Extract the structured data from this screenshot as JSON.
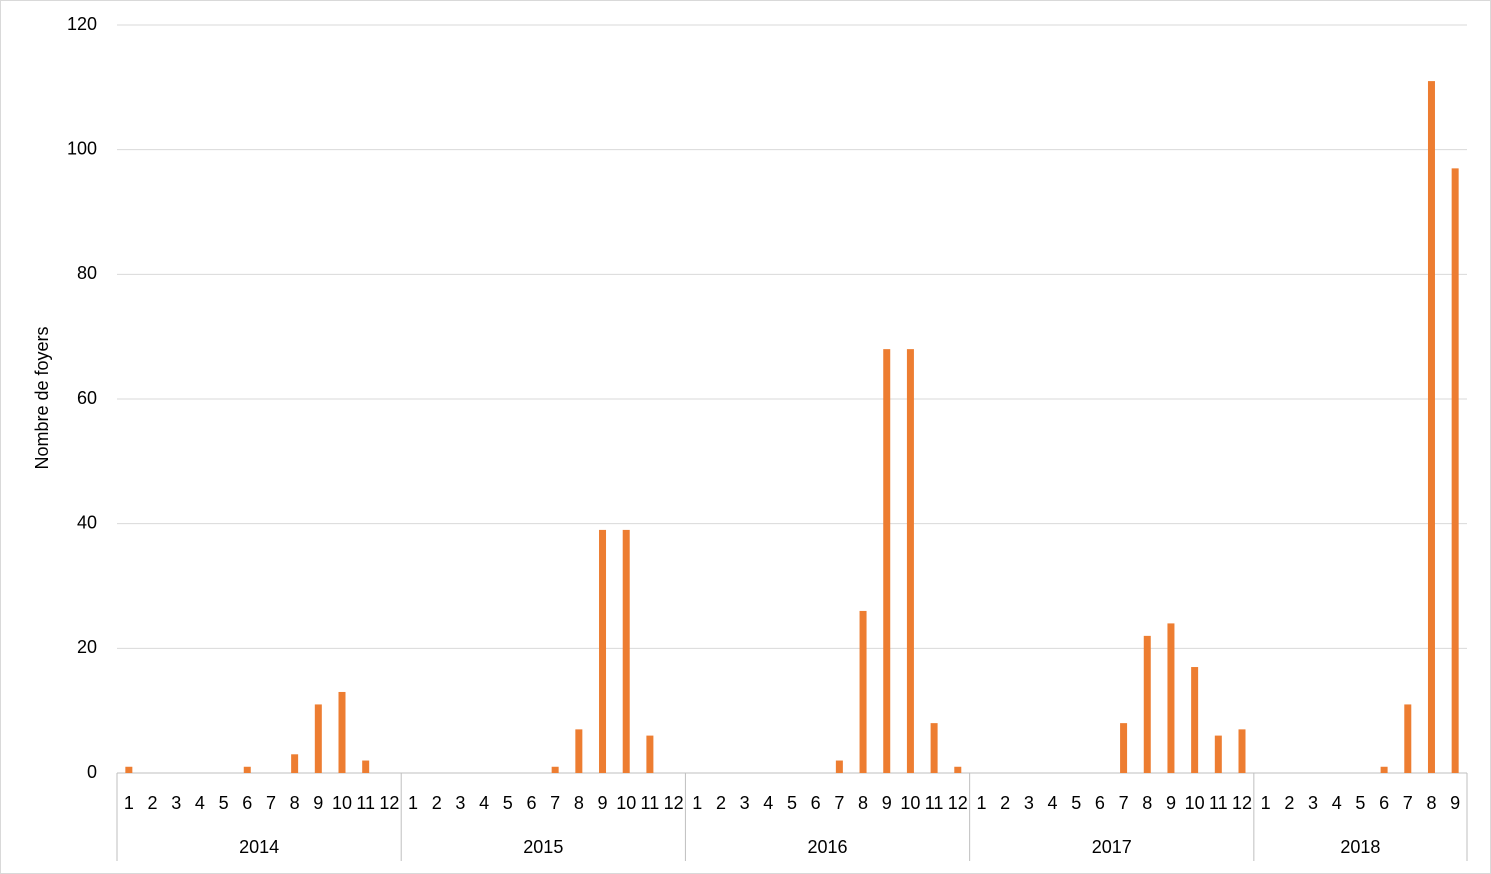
{
  "chart_data": {
    "type": "bar",
    "ylabel": "Nombre de foyers",
    "color": "#ed7d31",
    "ylim": [
      0,
      120
    ],
    "yticks": [
      0,
      20,
      40,
      60,
      80,
      100,
      120
    ],
    "grid": true,
    "groups": [
      {
        "name": "2014",
        "categories": [
          "1",
          "2",
          "3",
          "4",
          "5",
          "6",
          "7",
          "8",
          "9",
          "10",
          "11",
          "12"
        ],
        "values": [
          1,
          0,
          0,
          0,
          0,
          1,
          0,
          3,
          11,
          13,
          2,
          0
        ]
      },
      {
        "name": "2015",
        "categories": [
          "1",
          "2",
          "3",
          "4",
          "5",
          "6",
          "7",
          "8",
          "9",
          "10",
          "11",
          "12"
        ],
        "values": [
          0,
          0,
          0,
          0,
          0,
          0,
          1,
          7,
          39,
          39,
          6,
          0
        ]
      },
      {
        "name": "2016",
        "categories": [
          "1",
          "2",
          "3",
          "4",
          "5",
          "6",
          "7",
          "8",
          "9",
          "10",
          "11",
          "12"
        ],
        "values": [
          0,
          0,
          0,
          0,
          0,
          0,
          2,
          26,
          68,
          68,
          8,
          1
        ]
      },
      {
        "name": "2017",
        "categories": [
          "1",
          "2",
          "3",
          "4",
          "5",
          "6",
          "7",
          "8",
          "9",
          "10",
          "11",
          "12"
        ],
        "values": [
          0,
          0,
          0,
          0,
          0,
          0,
          8,
          22,
          24,
          17,
          6,
          7
        ]
      },
      {
        "name": "2018",
        "categories": [
          "1",
          "2",
          "3",
          "4",
          "5",
          "6",
          "7",
          "8",
          "9"
        ],
        "values": [
          0,
          0,
          0,
          0,
          0,
          1,
          11,
          111,
          97
        ]
      }
    ]
  }
}
